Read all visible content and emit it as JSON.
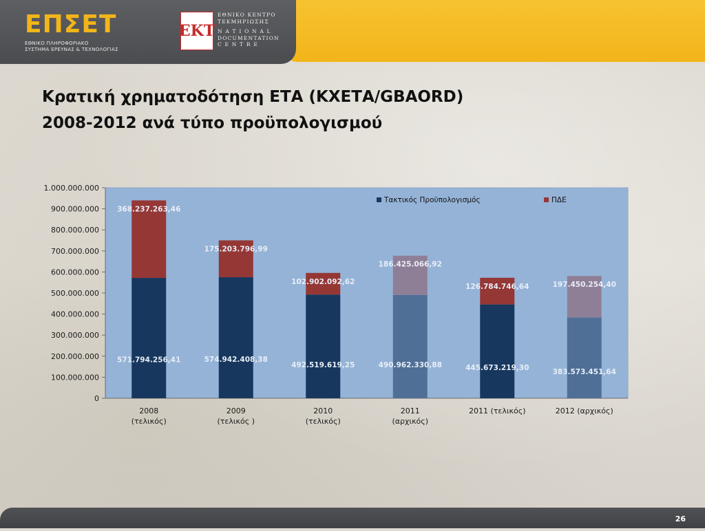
{
  "header": {
    "logo_main": "ΕΠΣΕΤ",
    "logo_sub_line1": "ΕΘΝΙΚΟ ΠΛΗΡΟΦΟΡΙΑΚΟ",
    "logo_sub_line2": "ΣΥΣΤΗΜΑ ΕΡΕΥΝΑΣ & ΤΕΧΝΟΛΟΓΙΑΣ",
    "ekt_badge": "ΕΚΤ",
    "ekt_line1": "ΕΘΝΙΚΟ ΚΕΝΤΡΟ",
    "ekt_line2": "ΤΕΚΜΗΡΙΩΣΗΣ",
    "ekt_line3": "N A T I O N A L",
    "ekt_line4": "DOCUMENTATION",
    "ekt_line5": "C E N T R E"
  },
  "slide": {
    "title_line1": "Κρατική χρηματοδότηση ΕΤΑ (ΚΧΕΤΑ/GBAORD)",
    "title_line2": "2008-2012 ανά τύπο προϋπολογισμού",
    "page_number": "26"
  },
  "colors": {
    "plot_bg": "#95b3d7",
    "regular_dark": "#17375e",
    "regular_light": "#4f6f96",
    "pde_dark": "#953735",
    "pde_light": "#8f7f96"
  },
  "chart_data": {
    "type": "bar",
    "stacked": true,
    "categories": [
      [
        "2008",
        "(τελικός)"
      ],
      [
        "2009",
        "(τελικός )"
      ],
      [
        "2010",
        "(τελικός)"
      ],
      [
        "2011",
        "(αρχικός)"
      ],
      [
        "2011  (τελικός)"
      ],
      [
        "2012 (αρχικός)"
      ]
    ],
    "series": [
      {
        "name": "Τακτικός Προϋπολογισμός",
        "values": [
          571794256.41,
          574942408.38,
          492519619.25,
          490962330.88,
          445673219.3,
          383573451.64
        ],
        "labels": [
          "571.794.256,41",
          "574.942.408,38",
          "492.519.619,25",
          "490.962.330,88",
          "445.673.219,30",
          "383.573.451,64"
        ]
      },
      {
        "name": "ΠΔΕ",
        "values": [
          368237263.46,
          175203796.99,
          102902092.62,
          186425066.92,
          126784746.64,
          197450254.4
        ],
        "labels": [
          "368.237.263,46",
          "175.203.796,99",
          "102.902.092,62",
          "186.425.066,92",
          "126.784.746,64",
          "197.450.254,40"
        ]
      }
    ],
    "highlight": [
      true,
      true,
      true,
      false,
      true,
      false
    ],
    "ylim": [
      0,
      1000000000
    ],
    "yticks": [
      0,
      100000000,
      200000000,
      300000000,
      400000000,
      500000000,
      600000000,
      700000000,
      800000000,
      900000000,
      1000000000
    ],
    "ytick_labels": [
      "0",
      "100.000.000",
      "200.000.000",
      "300.000.000",
      "400.000.000",
      "500.000.000",
      "600.000.000",
      "700.000.000",
      "800.000.000",
      "900.000.000",
      "1.000.000.000"
    ],
    "legend_position": "top-right",
    "grid": false
  }
}
